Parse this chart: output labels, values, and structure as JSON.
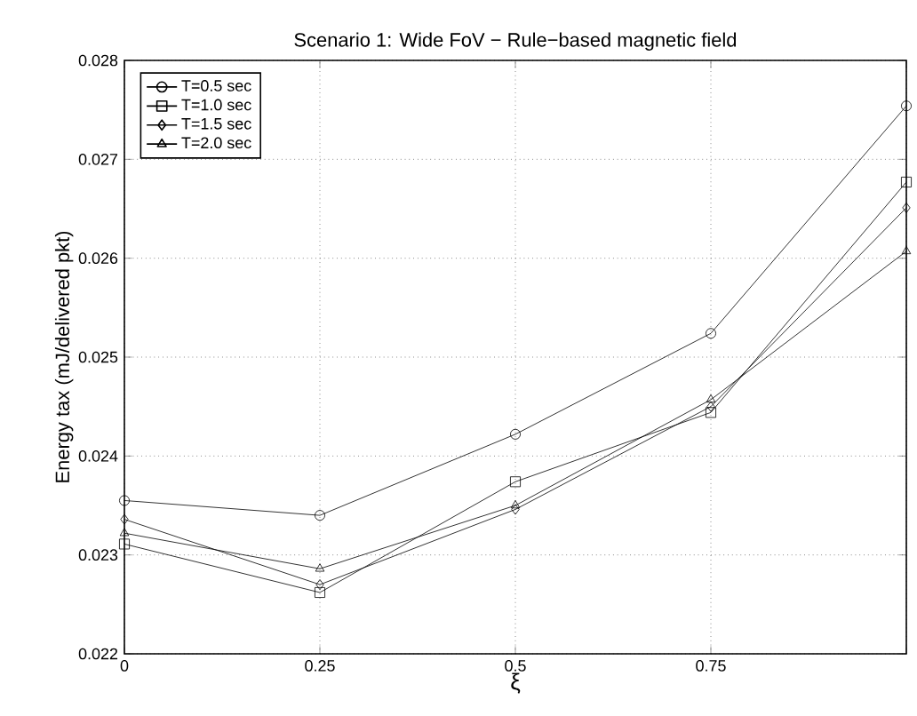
{
  "chart_data": {
    "type": "line",
    "title": "Scenario 1: Wide FoV − Rule−based magnetic field",
    "xlabel": "ξ",
    "ylabel": "Energy tax (mJ/delivered pkt)",
    "x": [
      0,
      0.25,
      0.5,
      0.75,
      1
    ],
    "series": [
      {
        "name": "T=0.5 sec",
        "color": "#000000",
        "marker": "circle",
        "values": [
          0.02355,
          0.0234,
          0.02422,
          0.02524,
          0.02754
        ]
      },
      {
        "name": "T=1.0 sec",
        "color": "#000000",
        "marker": "square",
        "values": [
          0.02311,
          0.02262,
          0.02374,
          0.02444,
          0.02677
        ]
      },
      {
        "name": "T=1.5 sec",
        "color": "#000000",
        "marker": "diamond",
        "values": [
          0.02336,
          0.0227,
          0.02346,
          0.0245,
          0.02651
        ]
      },
      {
        "name": "T=2.0 sec",
        "color": "#000000",
        "marker": "triangle",
        "values": [
          0.02322,
          0.02286,
          0.0235,
          0.02457,
          0.02607
        ]
      }
    ],
    "xlim": [
      0,
      1
    ],
    "xticks": [
      0,
      0.25,
      0.5,
      0.75,
      {
        "value": 1,
        "label": null
      }
    ],
    "ylim": [
      0.022,
      0.028
    ],
    "yticks": [
      0.022,
      0.023,
      0.024,
      0.025,
      0.026,
      0.027,
      0.028
    ],
    "grid": true,
    "legend": "top left",
    "line_style": "solid"
  }
}
